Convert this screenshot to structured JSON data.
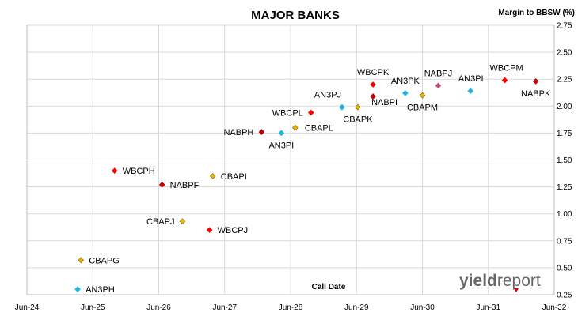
{
  "chart_data": {
    "type": "scatter",
    "title": "MAJOR BANKS",
    "ylabel": "Margin to BBSW (%)",
    "xlabel": "Call Date",
    "x_ticks": [
      "Jun-24",
      "Jun-25",
      "Jun-26",
      "Jun-27",
      "Jun-28",
      "Jun-29",
      "Jun-30",
      "Jun-31",
      "Jun-32"
    ],
    "y_ticks": [
      "0.25",
      "0.50",
      "0.75",
      "1.00",
      "1.25",
      "1.50",
      "1.75",
      "2.00",
      "2.25",
      "2.50",
      "2.75"
    ],
    "xlim": [
      2024.5,
      2032.5
    ],
    "ylim": [
      0.25,
      2.75
    ],
    "grid": true,
    "colors": {
      "WBC": "#ff0000",
      "NAB": "#c00000",
      "CBA": "#e6b800",
      "AN3": "#1fb3e0",
      "NABPJ": "#c0507a"
    },
    "points": [
      {
        "label": "AN3PH",
        "x": 2025.27,
        "y": 0.3,
        "group": "AN3"
      },
      {
        "label": "CBAPG",
        "x": 2025.32,
        "y": 0.57,
        "group": "CBA"
      },
      {
        "label": "WBCPH",
        "x": 2025.83,
        "y": 1.4,
        "group": "WBC"
      },
      {
        "label": "NABPF",
        "x": 2026.55,
        "y": 1.27,
        "group": "NAB"
      },
      {
        "label": "CBAPJ",
        "x": 2026.86,
        "y": 0.93,
        "group": "CBA"
      },
      {
        "label": "CBAPI",
        "x": 2027.32,
        "y": 1.35,
        "group": "CBA"
      },
      {
        "label": "WBCPJ",
        "x": 2027.27,
        "y": 0.85,
        "group": "WBC"
      },
      {
        "label": "NABPH",
        "x": 2028.06,
        "y": 1.76,
        "group": "NAB"
      },
      {
        "label": "AN3PI",
        "x": 2028.36,
        "y": 1.75,
        "group": "AN3"
      },
      {
        "label": "CBAPL",
        "x": 2028.57,
        "y": 1.8,
        "group": "CBA"
      },
      {
        "label": "WBCPL",
        "x": 2028.81,
        "y": 1.94,
        "group": "WBC"
      },
      {
        "label": "AN3PJ",
        "x": 2029.28,
        "y": 1.99,
        "group": "AN3"
      },
      {
        "label": "CBAPK",
        "x": 2029.52,
        "y": 1.99,
        "group": "CBA"
      },
      {
        "label": "WBCPK",
        "x": 2029.75,
        "y": 2.2,
        "group": "WBC"
      },
      {
        "label": "NABPI",
        "x": 2029.75,
        "y": 2.09,
        "group": "NAB"
      },
      {
        "label": "AN3PK",
        "x": 2030.24,
        "y": 2.12,
        "group": "AN3"
      },
      {
        "label": "CBAPM",
        "x": 2030.5,
        "y": 2.1,
        "group": "CBA"
      },
      {
        "label": "NABPJ",
        "x": 2030.74,
        "y": 2.19,
        "group": "NABPJ"
      },
      {
        "label": "AN3PL",
        "x": 2031.23,
        "y": 2.14,
        "group": "AN3"
      },
      {
        "label": "WBCPM",
        "x": 2031.75,
        "y": 2.24,
        "group": "WBC"
      },
      {
        "label": "NABPK",
        "x": 2032.22,
        "y": 2.23,
        "group": "NAB"
      }
    ]
  },
  "logo": {
    "bold": "yield",
    "regular": "report"
  }
}
